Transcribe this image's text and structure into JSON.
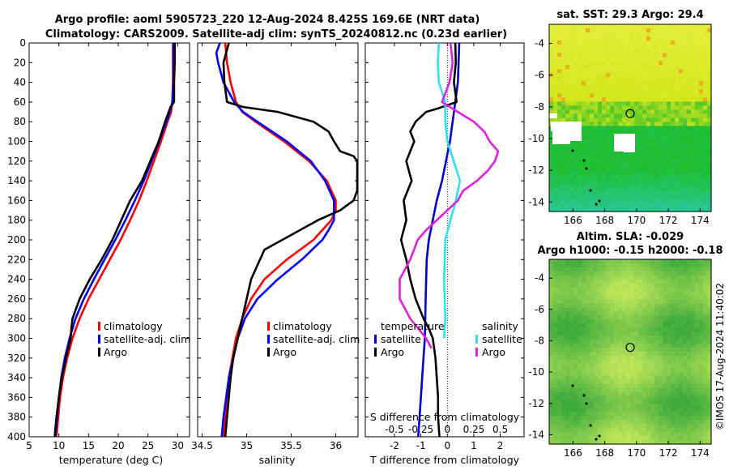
{
  "header": {
    "title_line1": "Argo profile: aoml 5905723_220 12-Aug-2024 8.425S 169.6E (NRT data)",
    "title_line2": "Climatology: CARS2009. Satellite-adj clim: synTS_20240812.nc (0.23d earlier)"
  },
  "colors": {
    "climatology": "#ff0000",
    "satellite": "#0000ff",
    "argo": "#000000",
    "t_diff": "#000000",
    "t_sat": "#0000cc",
    "s_diff": "#e020e0",
    "s_sat": "#30e0ee"
  },
  "chart_data": [
    {
      "type": "line",
      "title": "",
      "xlabel": "temperature (deg C)",
      "ylabel": "depth",
      "xlim": [
        5,
        32
      ],
      "ylim": [
        400,
        0
      ],
      "xticks": [
        "5",
        "10",
        "15",
        "20",
        "25",
        "30"
      ],
      "xtick_values": [
        5,
        10,
        15,
        20,
        25,
        30
      ],
      "yticks": [
        "0",
        "20",
        "40",
        "60",
        "80",
        "100",
        "120",
        "140",
        "160",
        "180",
        "200",
        "220",
        "240",
        "260",
        "280",
        "300",
        "320",
        "340",
        "360",
        "380",
        "400"
      ],
      "ytick_values": [
        0,
        20,
        40,
        60,
        80,
        100,
        120,
        140,
        160,
        180,
        200,
        220,
        240,
        260,
        280,
        300,
        320,
        340,
        360,
        380,
        400
      ],
      "legend": [
        "climatology",
        "satellite-adj. clim",
        "Argo"
      ],
      "series": [
        {
          "name": "climatology",
          "color": "#ff0000",
          "depth": [
            0,
            20,
            40,
            60,
            70,
            80,
            100,
            120,
            140,
            160,
            180,
            200,
            220,
            240,
            260,
            280,
            300,
            320,
            340,
            360,
            380,
            400
          ],
          "values": [
            29.2,
            29.2,
            29.2,
            29.1,
            28.9,
            28.3,
            27.2,
            26.0,
            24.8,
            23.5,
            22.0,
            20.4,
            18.6,
            16.8,
            15.0,
            13.5,
            12.3,
            11.4,
            10.7,
            10.2,
            9.9,
            9.6
          ]
        },
        {
          "name": "satellite-adj. clim",
          "color": "#0000ff",
          "depth": [
            0,
            20,
            40,
            60,
            70,
            80,
            100,
            120,
            140,
            160,
            180,
            200,
            220,
            240,
            260,
            280,
            300,
            320,
            340,
            360,
            380,
            400
          ],
          "values": [
            29.3,
            29.3,
            29.3,
            29.1,
            28.7,
            28.1,
            26.9,
            25.6,
            24.3,
            22.8,
            21.2,
            19.5,
            17.7,
            15.9,
            14.2,
            12.8,
            11.8,
            11.0,
            10.4,
            10.0,
            9.7,
            9.4
          ]
        },
        {
          "name": "Argo",
          "color": "#000000",
          "depth": [
            0,
            20,
            40,
            60,
            65,
            80,
            100,
            120,
            140,
            160,
            180,
            200,
            220,
            240,
            260,
            280,
            290,
            300,
            320,
            340,
            360,
            380,
            400
          ],
          "values": [
            29.5,
            29.5,
            29.4,
            29.4,
            28.8,
            27.9,
            26.8,
            25.4,
            24.0,
            22.0,
            20.5,
            19.0,
            17.2,
            15.2,
            13.5,
            12.3,
            12.1,
            12.0,
            11.2,
            10.5,
            10.0,
            9.6,
            9.3
          ]
        }
      ]
    },
    {
      "type": "line",
      "xlabel": "salinity",
      "ylabel": "depth",
      "xlim": [
        34.45,
        36.25
      ],
      "ylim": [
        400,
        0
      ],
      "xticks": [
        "34.5",
        "35",
        "35.5",
        "36"
      ],
      "xtick_values": [
        34.5,
        35,
        35.5,
        36
      ],
      "legend": [
        "climatology",
        "satellite-adj. clim",
        "Argo"
      ],
      "series": [
        {
          "name": "climatology",
          "color": "#ff0000",
          "depth": [
            0,
            20,
            40,
            60,
            70,
            80,
            100,
            120,
            140,
            160,
            170,
            180,
            200,
            220,
            240,
            260,
            280,
            300,
            320,
            340,
            360,
            380,
            400
          ],
          "values": [
            34.76,
            34.78,
            34.82,
            34.88,
            34.95,
            35.1,
            35.42,
            35.7,
            35.9,
            36.0,
            36.0,
            35.95,
            35.75,
            35.45,
            35.2,
            35.05,
            34.95,
            34.88,
            34.84,
            34.8,
            34.78,
            34.76,
            34.74
          ]
        },
        {
          "name": "satellite-adj. clim",
          "color": "#0000ff",
          "depth": [
            0,
            10,
            20,
            40,
            60,
            70,
            80,
            100,
            120,
            140,
            160,
            180,
            190,
            200,
            220,
            240,
            260,
            280,
            300,
            320,
            340,
            360,
            380,
            400
          ],
          "values": [
            34.7,
            34.66,
            34.68,
            34.74,
            34.86,
            34.96,
            35.12,
            35.45,
            35.72,
            35.88,
            35.98,
            35.98,
            35.92,
            35.85,
            35.62,
            35.35,
            35.12,
            34.98,
            34.9,
            34.85,
            34.8,
            34.77,
            34.74,
            34.72
          ]
        },
        {
          "name": "Argo",
          "color": "#000000",
          "depth": [
            0,
            20,
            40,
            60,
            65,
            70,
            80,
            90,
            100,
            110,
            115,
            120,
            130,
            150,
            160,
            170,
            180,
            190,
            200,
            210,
            240,
            280,
            300,
            320,
            340,
            360,
            380,
            400
          ],
          "values": [
            34.8,
            34.74,
            34.75,
            34.78,
            34.96,
            35.35,
            35.75,
            35.92,
            35.98,
            36.05,
            36.2,
            36.25,
            36.25,
            36.25,
            36.2,
            36.05,
            35.8,
            35.6,
            35.4,
            35.2,
            35.05,
            34.95,
            34.9,
            34.85,
            34.82,
            34.8,
            34.78,
            34.76
          ]
        }
      ]
    },
    {
      "type": "line",
      "xlabel": "T difference from climatology",
      "x2label": "S difference from climatology",
      "xlim": [
        -3.1,
        2.9
      ],
      "ylim": [
        400,
        0
      ],
      "xticks": [
        "-2",
        "-1",
        "0",
        "1",
        "2"
      ],
      "xtick_values": [
        -2,
        -1,
        0,
        1,
        2
      ],
      "x2ticks": [
        "-0.5",
        "-0.25",
        "0",
        "0.25",
        "0.5"
      ],
      "x2tick_values": [
        -0.5,
        -0.25,
        0,
        0.25,
        0.5
      ],
      "legend_temperature_title": "temperature",
      "legend_salinity_title": "salinity",
      "legend": [
        "satellite",
        "Argo",
        "satellite",
        "Argo"
      ],
      "series": [
        {
          "name": "temperature satellite",
          "color": "#0000cc",
          "depth": [
            0,
            40,
            60,
            80,
            100,
            120,
            140,
            160,
            180,
            200,
            220,
            260,
            300,
            340,
            380,
            400
          ],
          "values": [
            0.45,
            0.4,
            0.3,
            0.2,
            0.1,
            -0.05,
            -0.2,
            -0.4,
            -0.55,
            -0.7,
            -0.78,
            -0.82,
            -0.85,
            -0.95,
            -1.05,
            -1.1
          ]
        },
        {
          "name": "temperature Argo",
          "color": "#000000",
          "depth": [
            0,
            20,
            40,
            60,
            66,
            70,
            80,
            90,
            100,
            120,
            140,
            160,
            180,
            200,
            220,
            240,
            260,
            280,
            290,
            300,
            320,
            340,
            360,
            380,
            400
          ],
          "values": [
            0.3,
            0.32,
            0.25,
            0.35,
            -0.3,
            -0.8,
            -1.2,
            -1.4,
            -1.25,
            -1.55,
            -1.35,
            -1.65,
            -1.55,
            -1.75,
            -1.55,
            -1.4,
            -1.2,
            -0.9,
            -0.7,
            -0.55,
            -0.45,
            -0.4,
            -0.35,
            -0.35,
            -0.3
          ]
        },
        {
          "name": "salinity satellite",
          "color": "#30e0ee",
          "depth": [
            0,
            20,
            40,
            60,
            80,
            100,
            120,
            140,
            160,
            180,
            200,
            240,
            280,
            300
          ],
          "values": [
            -0.08,
            -0.09,
            -0.08,
            -0.02,
            -0.02,
            0.0,
            0.06,
            0.12,
            0.08,
            0.03,
            -0.02,
            -0.03,
            -0.02,
            -0.03
          ]
        },
        {
          "name": "salinity Argo",
          "color": "#e020e0",
          "depth": [
            0,
            20,
            40,
            60,
            70,
            80,
            90,
            100,
            110,
            120,
            130,
            140,
            150,
            160,
            170,
            180,
            190,
            200,
            220,
            240,
            260,
            280,
            300,
            310
          ],
          "values": [
            0.03,
            0.05,
            0.02,
            -0.05,
            0.1,
            0.25,
            0.35,
            0.4,
            0.48,
            0.45,
            0.38,
            0.28,
            0.15,
            0.1,
            0.0,
            -0.1,
            -0.2,
            -0.28,
            -0.35,
            -0.45,
            -0.45,
            -0.35,
            -0.2,
            -0.15
          ]
        }
      ]
    }
  ],
  "maps": {
    "sst": {
      "title": "sat. SST: 29.3 Argo: 29.4",
      "xticks": [
        "166",
        "168",
        "170",
        "172",
        "174"
      ],
      "yticks": [
        "-4",
        "-6",
        "-8",
        "-10",
        "-12",
        "-14"
      ]
    },
    "altim": {
      "title_line1": "Altim. SLA: -0.029",
      "title_line2": "Argo h1000: -0.15 h2000: -0.18",
      "xticks": [
        "166",
        "168",
        "170",
        "172",
        "174"
      ],
      "yticks": [
        "-4",
        "-6",
        "-8",
        "-10",
        "-12",
        "-14"
      ]
    }
  },
  "footer": {
    "stamp": "©IMOS 17-Aug-2024 11:40:02"
  }
}
